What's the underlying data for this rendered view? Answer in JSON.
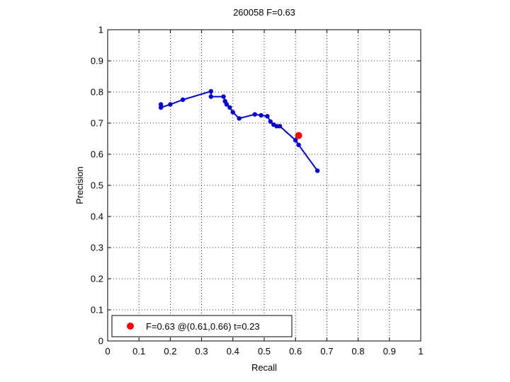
{
  "chart_data": {
    "type": "line",
    "title": "260058 F=0.63",
    "xlabel": "Recall",
    "ylabel": "Precision",
    "xlim": [
      0,
      1
    ],
    "ylim": [
      0,
      1
    ],
    "xticks": [
      "0",
      "0.1",
      "0.2",
      "0.3",
      "0.4",
      "0.5",
      "0.6",
      "0.7",
      "0.8",
      "0.9",
      "1"
    ],
    "yticks": [
      "0",
      "0.1",
      "0.2",
      "0.3",
      "0.4",
      "0.5",
      "0.6",
      "0.7",
      "0.8",
      "0.9",
      "1"
    ],
    "grid": true,
    "grid_style": "dotted",
    "series": [
      {
        "color": "#0000cc",
        "marker": "dot",
        "points": [
          [
            0.17,
            0.76
          ],
          [
            0.17,
            0.75
          ],
          [
            0.2,
            0.76
          ],
          [
            0.24,
            0.775
          ],
          [
            0.33,
            0.802
          ],
          [
            0.33,
            0.785
          ],
          [
            0.37,
            0.785
          ],
          [
            0.375,
            0.77
          ],
          [
            0.38,
            0.76
          ],
          [
            0.39,
            0.75
          ],
          [
            0.4,
            0.735
          ],
          [
            0.42,
            0.715
          ],
          [
            0.47,
            0.728
          ],
          [
            0.49,
            0.725
          ],
          [
            0.51,
            0.722
          ],
          [
            0.52,
            0.705
          ],
          [
            0.53,
            0.695
          ],
          [
            0.54,
            0.69
          ],
          [
            0.55,
            0.69
          ],
          [
            0.6,
            0.645
          ],
          [
            0.61,
            0.63
          ],
          [
            0.67,
            0.547
          ]
        ]
      }
    ],
    "highlight": {
      "x": 0.61,
      "y": 0.66,
      "color": "#ff0000"
    },
    "legend": {
      "location": "bottom-left",
      "text": "F=0.63 @(0.61,0.66) t=0.23",
      "marker_color": "#ff0000"
    }
  }
}
